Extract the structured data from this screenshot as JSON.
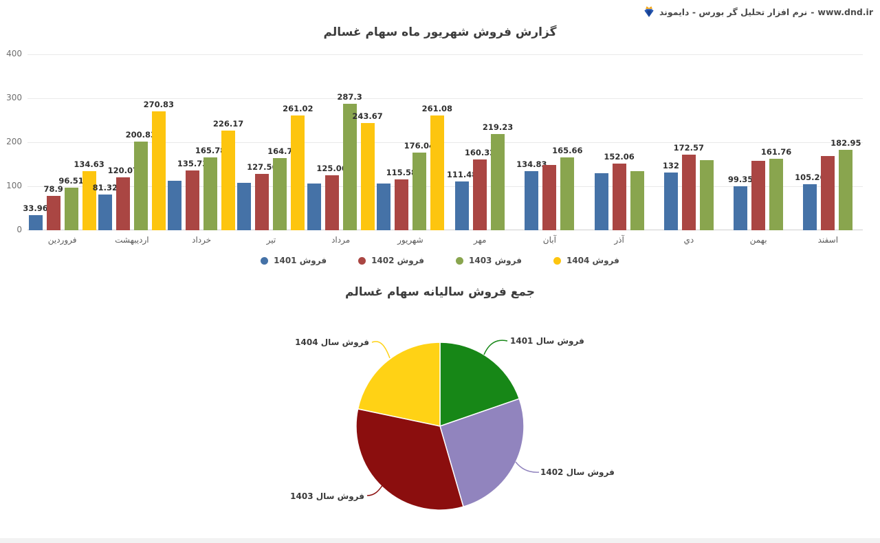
{
  "header": {
    "logo": "diamond-crown-icon",
    "brand_text": "نرم افزار تحلیل گر بورس - دایموند",
    "separator": "-",
    "brand_url": "www.dnd.ir"
  },
  "chart_data": [
    {
      "type": "bar",
      "title": "گزارش فروش شهریور ماه سهام غسالم",
      "categories": [
        "فروردین",
        "اردیبهشت",
        "خرداد",
        "تیر",
        "مرداد",
        "شهریور",
        "مهر",
        "آبان",
        "آذر",
        "دي",
        "بهمن",
        "اسفند"
      ],
      "series": [
        {
          "name": "فروش 1401",
          "color": "#4572A7",
          "values": [
            33.96,
            81.32,
            112,
            108,
            107,
            107,
            111.48,
            134.83,
            129,
            132,
            99.35,
            105.26
          ],
          "labels": [
            "33.96",
            "81.32",
            null,
            null,
            null,
            null,
            "111.48",
            "134.83",
            null,
            "132",
            "99.35",
            "105.26"
          ]
        },
        {
          "name": "فروش 1402",
          "color": "#AA4643",
          "values": [
            78.9,
            120.07,
            135.73,
            127.56,
            125.06,
            115.58,
            160.32,
            148,
            152.06,
            172.57,
            158,
            168
          ],
          "labels": [
            "78.9",
            "120.07",
            "135.73",
            "127.56",
            "125.06",
            "115.58",
            "160.32",
            null,
            "152.06",
            "172.57",
            null,
            null
          ]
        },
        {
          "name": "فروش 1403",
          "color": "#89A54E",
          "values": [
            96.51,
            200.83,
            165.78,
            164.7,
            287.3,
            176.04,
            219.23,
            165.66,
            134,
            159,
            161.76,
            182.95
          ],
          "labels": [
            "96.51",
            "200.83",
            "165.78",
            "164.7",
            "287.3",
            "176.04",
            "219.23",
            "165.66",
            null,
            null,
            "161.76",
            "182.95"
          ]
        },
        {
          "name": "فروش 1404",
          "color": "#FDC50F",
          "values": [
            134.63,
            270.83,
            226.17,
            261.02,
            243.67,
            261.08,
            null,
            null,
            null,
            null,
            null,
            null
          ],
          "labels": [
            "134.63",
            "270.83",
            "226.17",
            "261.02",
            "243.67",
            "261.08",
            null,
            null,
            null,
            null,
            null,
            null
          ]
        }
      ],
      "ylim": [
        0,
        400
      ],
      "yticks": [
        0,
        100,
        200,
        300,
        400
      ],
      "grid": true,
      "legend_position": "bottom"
    },
    {
      "type": "pie",
      "title": "جمع فروش سالیانه سهام غسالم",
      "slices": [
        {
          "label": "فروش سال 1401",
          "color": "#178717",
          "percent": 19.7
        },
        {
          "label": "فروش سال 1402",
          "color": "#9184BE",
          "percent": 25.8
        },
        {
          "label": "فروش سال 1403",
          "color": "#8B0E0E",
          "percent": 32.8
        },
        {
          "label": "فروش سال 1404",
          "color": "#FFD215",
          "percent": 21.7
        }
      ],
      "start_angle_deg": 0,
      "direction": "clockwise",
      "legend_position": "none"
    }
  ]
}
